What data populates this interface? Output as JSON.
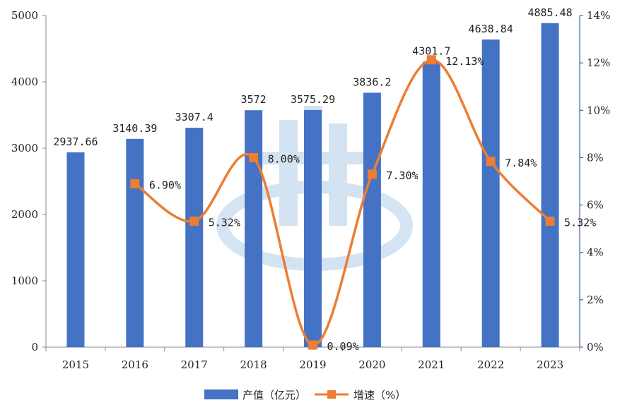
{
  "chart_data": {
    "type": "bar",
    "categories": [
      "2015",
      "2016",
      "2017",
      "2018",
      "2019",
      "2020",
      "2021",
      "2022",
      "2023"
    ],
    "series": [
      {
        "name": "产值（亿元）",
        "type": "bar",
        "axis": "left",
        "color": "#4472c4",
        "values": [
          2937.66,
          3140.39,
          3307.4,
          3572,
          3575.29,
          3836.2,
          4301.7,
          4638.84,
          4885.48
        ],
        "labels": [
          "2937.66",
          "3140.39",
          "3307.4",
          "3572",
          "3575.29",
          "3836.2",
          "4301.7",
          "4638.84",
          "4885.48"
        ]
      },
      {
        "name": "增速（%）",
        "type": "line",
        "axis": "right",
        "color": "#ed7d31",
        "smooth": true,
        "values": [
          null,
          6.9,
          5.32,
          8.0,
          0.09,
          7.3,
          12.13,
          7.84,
          5.32
        ],
        "labels": [
          "",
          "6.90%",
          "5.32%",
          "8.00%",
          "0.09%",
          "7.30%",
          "12.13%",
          "7.84%",
          "5.32%"
        ]
      }
    ],
    "y_left": {
      "range": [
        0,
        5000
      ],
      "ticks": [
        "0",
        "1000",
        "2000",
        "3000",
        "4000",
        "5000"
      ]
    },
    "y_right": {
      "range": [
        0,
        14
      ],
      "ticks": [
        "0%",
        "2%",
        "4%",
        "6%",
        "8%",
        "10%",
        "12%",
        "14%"
      ]
    },
    "grid": false,
    "legend_position": "bottom"
  }
}
